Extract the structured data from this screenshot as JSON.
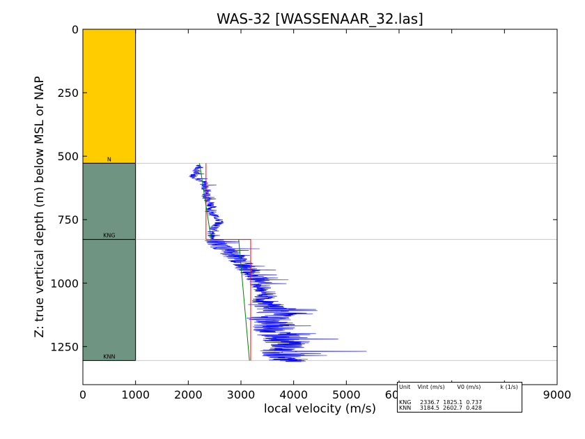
{
  "chart_data": {
    "type": "line",
    "title": "WAS-32 [WASSENAAR_32.las]",
    "xlabel": "local velocity (m/s)",
    "ylabel": "Z: true vertical depth (m) below MSL or NAP",
    "xlim": [
      0,
      9000
    ],
    "ylim": [
      1400,
      0
    ],
    "x_ticks": [
      "0",
      "1000",
      "2000",
      "3000",
      "4000",
      "5000",
      "6000",
      "7000",
      "8000",
      "9000"
    ],
    "x_tick_values": [
      0,
      1000,
      2000,
      3000,
      4000,
      5000,
      6000,
      7000,
      8000,
      9000
    ],
    "y_ticks": [
      "0",
      "250",
      "500",
      "750",
      "1000",
      "1250"
    ],
    "y_tick_values": [
      0,
      250,
      500,
      750,
      1000,
      1250
    ],
    "grid": false,
    "colors": {
      "unit_N": "#ffcc00",
      "unit_KNG": "#6f9582",
      "unit_KNN": "#6f9582",
      "velocity_log": "#0000ff",
      "interval_velocity": "#ff0000",
      "v0_k_fit": "#008000",
      "horizon_line": "#c8c8c8"
    },
    "units": [
      {
        "label": "N",
        "top": 0,
        "base": 528,
        "color": "#ffcc00"
      },
      {
        "label": "KNG",
        "top": 528,
        "base": 828,
        "color": "#6f9582"
      },
      {
        "label": "KNN",
        "top": 828,
        "base": 1305,
        "color": "#6f9582"
      }
    ],
    "unit_column_x": [
      0,
      1000
    ],
    "horizon_depths": [
      528,
      828,
      1305
    ],
    "interval_velocity": [
      {
        "unit": "KNG",
        "vint": 2336.7,
        "top": 528,
        "base": 828
      },
      {
        "unit": "KNN",
        "vint": 3184.5,
        "top": 828,
        "base": 1305
      }
    ],
    "v0_k_fit": [
      {
        "unit": "KNG",
        "v0": 1825.1,
        "k": 0.737,
        "top": 528,
        "base": 828,
        "v_top": 2214,
        "v_base": 2435
      },
      {
        "unit": "KNN",
        "v0": 2602.7,
        "k": 0.428,
        "top": 828,
        "base": 1305,
        "v_top": 2957,
        "v_base": 3161
      }
    ],
    "velocity_log_trend": [
      {
        "z": 535,
        "v": 2230
      },
      {
        "z": 560,
        "v": 2150
      },
      {
        "z": 580,
        "v": 2100
      },
      {
        "z": 600,
        "v": 2280
      },
      {
        "z": 620,
        "v": 2320
      },
      {
        "z": 640,
        "v": 2350
      },
      {
        "z": 660,
        "v": 2330
      },
      {
        "z": 680,
        "v": 2420
      },
      {
        "z": 700,
        "v": 2450
      },
      {
        "z": 720,
        "v": 2380
      },
      {
        "z": 740,
        "v": 2550
      },
      {
        "z": 760,
        "v": 2600
      },
      {
        "z": 780,
        "v": 2500
      },
      {
        "z": 800,
        "v": 2420
      },
      {
        "z": 820,
        "v": 2480
      },
      {
        "z": 840,
        "v": 2500
      },
      {
        "z": 860,
        "v": 2650
      },
      {
        "z": 880,
        "v": 2800
      },
      {
        "z": 900,
        "v": 2900
      },
      {
        "z": 920,
        "v": 3000
      },
      {
        "z": 940,
        "v": 3100
      },
      {
        "z": 960,
        "v": 3200
      },
      {
        "z": 980,
        "v": 3300
      },
      {
        "z": 1000,
        "v": 3400
      },
      {
        "z": 1020,
        "v": 3350
      },
      {
        "z": 1040,
        "v": 3500
      },
      {
        "z": 1060,
        "v": 3450
      },
      {
        "z": 1080,
        "v": 3400
      },
      {
        "z": 1100,
        "v": 3650
      },
      {
        "z": 1120,
        "v": 3700
      },
      {
        "z": 1140,
        "v": 3500
      },
      {
        "z": 1160,
        "v": 3650
      },
      {
        "z": 1180,
        "v": 3600
      },
      {
        "z": 1200,
        "v": 3700
      },
      {
        "z": 1220,
        "v": 3800
      },
      {
        "z": 1240,
        "v": 3900
      },
      {
        "z": 1260,
        "v": 3750
      },
      {
        "z": 1280,
        "v": 3800
      },
      {
        "z": 1300,
        "v": 3850
      },
      {
        "z": 1310,
        "v": 3900
      }
    ],
    "legend": {
      "header": "Unit    Vint (m/s)       V0 (m/s)           k (1/s)",
      "rows": [
        "KNG     2336.7  1825.1  0.737",
        "KNN     3184.5  2602.7  0.428"
      ]
    }
  }
}
